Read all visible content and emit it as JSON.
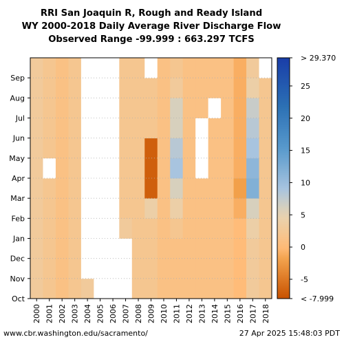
{
  "header": {
    "line1": "RRI San Joaquin R, Rough and Ready Island",
    "line2": "WY 2000-2018 Daily Average River Discharge Flow",
    "line3": "Observed Range -99.999 : 663.297 TCFS"
  },
  "footer": {
    "source": "www.cbr.washington.edu/sacramento/",
    "timestamp": "27 Apr 2025 15:48:03 PDT"
  },
  "colors": {
    "missing": "#ffffff",
    "low": "#c85200",
    "mid": "#ffbc79",
    "high": "#1a3da8",
    "max": "#061a8a"
  },
  "chart_data": {
    "type": "heatmap",
    "x": [
      "2000",
      "2001",
      "2002",
      "2003",
      "2004",
      "2005",
      "2006",
      "2007",
      "2008",
      "2009",
      "2010",
      "2011",
      "2012",
      "2013",
      "2014",
      "2015",
      "2016",
      "2017",
      "2018"
    ],
    "y_ticks": [
      "Oct",
      "Nov",
      "Dec",
      "Jan",
      "Feb",
      "Mar",
      "Apr",
      "May",
      "Jun",
      "Jul",
      "Aug",
      "Sep"
    ],
    "colorbar": {
      "range": [
        -7.999,
        29.37
      ],
      "ticks": [
        -5,
        0,
        5,
        10,
        15,
        20,
        25
      ],
      "top_label": "> 29.370",
      "bottom_label": "< -7.999"
    },
    "typical_monthly_tcfs": [
      {
        "year": "2000",
        "values": [
          3,
          3,
          3,
          3,
          3,
          3,
          3,
          3,
          3,
          3,
          3,
          3
        ]
      },
      {
        "year": "2001",
        "values": [
          2,
          2,
          2,
          2,
          2,
          2,
          null,
          2,
          2,
          2,
          2,
          2
        ]
      },
      {
        "year": "2002",
        "values": [
          1,
          1,
          1,
          1,
          1,
          1,
          1,
          1,
          1,
          1,
          1,
          1
        ]
      },
      {
        "year": "2003",
        "values": [
          2,
          2,
          2,
          2,
          2,
          2,
          2,
          2,
          2,
          2,
          2,
          2
        ]
      },
      {
        "year": "2004",
        "values": [
          3,
          null,
          null,
          null,
          null,
          null,
          null,
          null,
          null,
          null,
          null,
          null
        ]
      },
      {
        "year": "2005",
        "values": [
          null,
          null,
          null,
          null,
          null,
          null,
          null,
          null,
          null,
          null,
          null,
          null
        ]
      },
      {
        "year": "2006",
        "values": [
          null,
          null,
          null,
          null,
          null,
          null,
          null,
          null,
          null,
          null,
          null,
          null
        ]
      },
      {
        "year": "2007",
        "values": [
          null,
          null,
          null,
          3,
          2,
          2,
          2,
          2,
          2,
          2,
          2,
          2
        ]
      },
      {
        "year": "2008",
        "values": [
          2,
          2,
          2,
          2,
          2,
          2,
          2,
          2,
          2,
          2,
          2,
          2
        ]
      },
      {
        "year": "2009",
        "values": [
          2,
          2,
          2,
          2,
          4,
          -7,
          -7,
          -7,
          2,
          2,
          2,
          null
        ]
      },
      {
        "year": "2010",
        "values": [
          1,
          1,
          1,
          1,
          1,
          1,
          1,
          1,
          1,
          1,
          1,
          1
        ]
      },
      {
        "year": "2011",
        "values": [
          1,
          1,
          1,
          2,
          4,
          6,
          9,
          8,
          6,
          6,
          3,
          2
        ]
      },
      {
        "year": "2012",
        "values": [
          1,
          1,
          1,
          1,
          1,
          1,
          1,
          1,
          1,
          1,
          1,
          1
        ]
      },
      {
        "year": "2013",
        "values": [
          1,
          1,
          1,
          1,
          1,
          1,
          null,
          null,
          null,
          1,
          1,
          1
        ]
      },
      {
        "year": "2014",
        "values": [
          1,
          1,
          1,
          1,
          1,
          1,
          1,
          1,
          1,
          null,
          1,
          1
        ]
      },
      {
        "year": "2015",
        "values": [
          1,
          1,
          1,
          1,
          1,
          1,
          1,
          1,
          1,
          1,
          1,
          1
        ]
      },
      {
        "year": "2016",
        "values": [
          0,
          0,
          0,
          0,
          -1,
          -2,
          -1,
          -1,
          -1,
          -1,
          -1,
          -1
        ]
      },
      {
        "year": "2017",
        "values": [
          3,
          3,
          3,
          4,
          6,
          12,
          11,
          9,
          8,
          7,
          4,
          3
        ]
      },
      {
        "year": "2018",
        "values": [
          2,
          2,
          2,
          2,
          2,
          2,
          2,
          2,
          2,
          2,
          2,
          null
        ]
      }
    ]
  }
}
